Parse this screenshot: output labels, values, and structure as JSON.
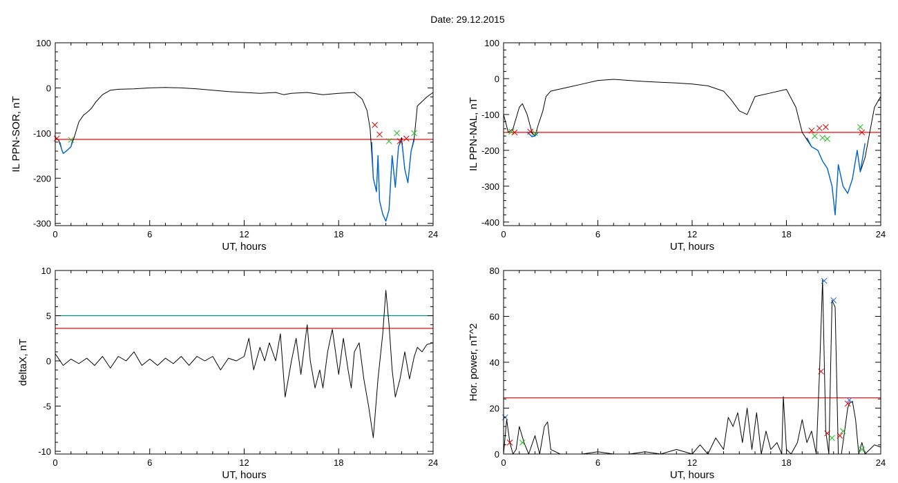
{
  "header": {
    "date_text": "Date:  29.12.2015"
  },
  "colors": {
    "trace": "#000000",
    "threshold": "#ff0000",
    "secondary_threshold": "#008b8b",
    "highlight": "#0066cc",
    "marker_red": "#dd0000",
    "marker_green": "#22bb22",
    "marker_blue": "#2266dd"
  },
  "chart_data": [
    {
      "type": "line",
      "xlabel": "UT, hours",
      "ylabel": "IL PPN-SOR, nT",
      "xlim": [
        0,
        24
      ],
      "ylim": [
        -305,
        100
      ],
      "xticks": [
        0,
        6,
        12,
        18,
        24
      ],
      "yticks": [
        100,
        0,
        -100,
        -200,
        -300
      ],
      "grid": false,
      "series": [
        {
          "role": "trace",
          "color": "#000000",
          "x": [
            0,
            0.2,
            0.4,
            0.5,
            0.7,
            1.0,
            1.2,
            1.5,
            1.8,
            2.0,
            2.3,
            2.6,
            3.0,
            3.5,
            4.0,
            5.0,
            6.0,
            7.0,
            8.0,
            9.0,
            10.0,
            11.0,
            12.0,
            13.0,
            14.0,
            14.5,
            15.0,
            16.0,
            17.0,
            18.0,
            19.0,
            19.5,
            19.8,
            20.0,
            20.2,
            20.4,
            20.5,
            20.6,
            20.8,
            21.0,
            21.2,
            21.4,
            21.6,
            21.8,
            22.0,
            22.2,
            22.4,
            22.6,
            22.8,
            23.0,
            23.3,
            23.6,
            24.0
          ],
          "y": [
            -110,
            -115,
            -135,
            -145,
            -140,
            -130,
            -110,
            -75,
            -60,
            -55,
            -45,
            -30,
            -15,
            -5,
            -3,
            -2,
            0,
            1,
            0,
            -2,
            -5,
            -8,
            -10,
            -12,
            -10,
            -15,
            -12,
            -10,
            -15,
            -12,
            -10,
            -25,
            -50,
            -90,
            -200,
            -230,
            -150,
            -250,
            -280,
            -295,
            -270,
            -150,
            -220,
            -130,
            -110,
            -180,
            -210,
            -140,
            -110,
            -40,
            -30,
            -20,
            -10
          ]
        },
        {
          "role": "highlight",
          "color": "#0066cc",
          "x": [
            0.3,
            0.4,
            0.5,
            0.7,
            1.0,
            1.1
          ],
          "y": [
            -120,
            -135,
            -145,
            -140,
            -130,
            -115
          ]
        },
        {
          "role": "highlight",
          "color": "#0066cc",
          "x": [
            20.1,
            20.2,
            20.4,
            20.5,
            20.6,
            20.8,
            21.0,
            21.2,
            21.4,
            21.6,
            21.8,
            22.0,
            22.2,
            22.4,
            22.6,
            22.8
          ],
          "y": [
            -120,
            -200,
            -230,
            -150,
            -250,
            -280,
            -295,
            -270,
            -150,
            -220,
            -130,
            -115,
            -180,
            -210,
            -140,
            -115
          ]
        }
      ],
      "threshold_lines": [
        {
          "value": -114,
          "color": "#ff0000"
        }
      ],
      "markers": [
        {
          "x": 0.1,
          "y": -112,
          "color": "#dd0000"
        },
        {
          "x": 1.0,
          "y": -115,
          "color": "#22bb22"
        },
        {
          "x": 20.3,
          "y": -82,
          "color": "#dd0000"
        },
        {
          "x": 20.6,
          "y": -103,
          "color": "#dd0000"
        },
        {
          "x": 21.2,
          "y": -118,
          "color": "#22bb22"
        },
        {
          "x": 21.7,
          "y": -100,
          "color": "#22bb22"
        },
        {
          "x": 21.9,
          "y": -118,
          "color": "#dd0000"
        },
        {
          "x": 22.3,
          "y": -112,
          "color": "#dd0000"
        },
        {
          "x": 22.8,
          "y": -100,
          "color": "#22bb22"
        }
      ]
    },
    {
      "type": "line",
      "xlabel": "UT, hours",
      "ylabel": "IL PPN-NAL, nT",
      "xlim": [
        0,
        24
      ],
      "ylim": [
        -410,
        100
      ],
      "xticks": [
        0,
        6,
        12,
        18,
        24
      ],
      "yticks": [
        100,
        0,
        -100,
        -200,
        -300,
        -400
      ],
      "grid": false,
      "series": [
        {
          "role": "trace",
          "color": "#000000",
          "x": [
            0,
            0.3,
            0.6,
            0.8,
            1.0,
            1.2,
            1.5,
            1.8,
            2.0,
            2.2,
            2.5,
            2.7,
            3.0,
            3.5,
            4.0,
            5.0,
            6.0,
            7.0,
            8.0,
            9.0,
            10.0,
            11.0,
            12.0,
            13.0,
            14.0,
            14.5,
            15.0,
            15.5,
            16.0,
            17.0,
            18.0,
            18.6,
            19.0,
            19.3,
            19.6,
            20.0,
            20.3,
            20.6,
            20.9,
            21.1,
            21.3,
            21.6,
            21.9,
            22.2,
            22.5,
            22.7,
            23.0,
            23.3,
            23.6,
            24.0
          ],
          "y": [
            -100,
            -150,
            -140,
            -110,
            -80,
            -70,
            -100,
            -150,
            -160,
            -130,
            -90,
            -50,
            -35,
            -30,
            -25,
            -15,
            -5,
            -2,
            -5,
            -8,
            -10,
            -12,
            -15,
            -20,
            -35,
            -60,
            -90,
            -100,
            -50,
            -40,
            -30,
            -80,
            -150,
            -170,
            -190,
            -200,
            -230,
            -250,
            -300,
            -380,
            -240,
            -300,
            -320,
            -280,
            -200,
            -260,
            -220,
            -150,
            -80,
            -50
          ]
        },
        {
          "role": "highlight",
          "color": "#0066cc",
          "x": [
            1.5,
            1.8,
            2.0,
            2.2
          ],
          "y": [
            -148,
            -162,
            -160,
            -150
          ]
        },
        {
          "role": "highlight",
          "color": "#0066cc",
          "x": [
            19.3,
            19.6,
            20.0,
            20.3,
            20.6,
            20.9,
            21.1,
            21.3,
            21.6,
            21.9,
            22.2,
            22.5,
            22.7,
            23.0
          ],
          "y": [
            -165,
            -190,
            -200,
            -230,
            -250,
            -300,
            -380,
            -240,
            -300,
            -320,
            -280,
            -200,
            -260,
            -180
          ]
        }
      ],
      "threshold_lines": [
        {
          "value": -150,
          "color": "#ff0000"
        }
      ],
      "markers": [
        {
          "x": 0.5,
          "y": -148,
          "color": "#22bb22"
        },
        {
          "x": 0.7,
          "y": -150,
          "color": "#dd0000"
        },
        {
          "x": 1.7,
          "y": -148,
          "color": "#dd0000"
        },
        {
          "x": 2.0,
          "y": -152,
          "color": "#22bb22"
        },
        {
          "x": 19.6,
          "y": -145,
          "color": "#dd0000"
        },
        {
          "x": 19.8,
          "y": -160,
          "color": "#22bb22"
        },
        {
          "x": 20.1,
          "y": -138,
          "color": "#dd0000"
        },
        {
          "x": 20.3,
          "y": -165,
          "color": "#22bb22"
        },
        {
          "x": 20.5,
          "y": -135,
          "color": "#dd0000"
        },
        {
          "x": 20.6,
          "y": -168,
          "color": "#22bb22"
        },
        {
          "x": 22.7,
          "y": -135,
          "color": "#22bb22"
        },
        {
          "x": 22.8,
          "y": -150,
          "color": "#dd0000"
        }
      ]
    },
    {
      "type": "line",
      "xlabel": "UT, hours",
      "ylabel": "deltaX, nT",
      "xlim": [
        0,
        24
      ],
      "ylim": [
        -10.3,
        10
      ],
      "xticks": [
        0,
        6,
        12,
        18,
        24
      ],
      "yticks": [
        10,
        5,
        0,
        -5,
        -10
      ],
      "grid": false,
      "series": [
        {
          "role": "trace",
          "color": "#000000",
          "x": [
            0,
            0.5,
            1.0,
            1.5,
            2.0,
            2.5,
            3.0,
            3.5,
            4.0,
            4.5,
            5.0,
            5.5,
            6.0,
            6.5,
            7.0,
            7.5,
            8.0,
            8.5,
            9.0,
            9.5,
            10.0,
            10.5,
            11.0,
            11.5,
            12.0,
            12.3,
            12.6,
            13.0,
            13.3,
            13.6,
            14.0,
            14.3,
            14.6,
            15.0,
            15.3,
            15.6,
            16.0,
            16.2,
            16.5,
            16.8,
            17.0,
            17.3,
            17.6,
            17.8,
            18.0,
            18.3,
            18.6,
            18.8,
            19.0,
            19.3,
            19.6,
            19.9,
            20.2,
            20.5,
            20.8,
            21.0,
            21.2,
            21.4,
            21.6,
            21.9,
            22.2,
            22.5,
            22.8,
            23.0,
            23.3,
            23.6,
            24.0
          ],
          "y": [
            0.8,
            -0.5,
            0.2,
            -0.3,
            0.3,
            -0.5,
            0.5,
            -0.8,
            0.5,
            0.0,
            1.0,
            -0.5,
            0.2,
            -0.5,
            0.3,
            -0.3,
            0.5,
            -0.5,
            0.5,
            0.0,
            0.5,
            -1.0,
            0.3,
            0.0,
            0.5,
            2.5,
            -1.0,
            1.5,
            0.0,
            2.0,
            0.0,
            3.0,
            -4.0,
            0.0,
            2.5,
            -1.5,
            4.0,
            0.0,
            -3.0,
            -1.0,
            -3.0,
            1.0,
            3.5,
            1.0,
            -1.5,
            2.5,
            -1.0,
            -3.0,
            1.0,
            2.0,
            -2.0,
            -5.0,
            -8.5,
            -2.0,
            3.0,
            7.8,
            4.0,
            -1.0,
            -4.0,
            -2.0,
            1.0,
            -2.0,
            0.5,
            1.5,
            1.0,
            1.8,
            2.0
          ]
        }
      ],
      "threshold_lines": [
        {
          "value": 5,
          "color": "#008b8b"
        },
        {
          "value": 3.6,
          "color": "#ff0000"
        }
      ],
      "markers": []
    },
    {
      "type": "line",
      "xlabel": "UT, hours",
      "ylabel": "Hor. power, nT^2",
      "xlim": [
        0,
        24
      ],
      "ylim": [
        0,
        80
      ],
      "xticks": [
        0,
        6,
        12,
        18,
        24
      ],
      "yticks": [
        80,
        60,
        40,
        20,
        0
      ],
      "grid": false,
      "series": [
        {
          "role": "trace",
          "color": "#000000",
          "x": [
            0,
            0.2,
            0.4,
            0.6,
            0.8,
            1.0,
            1.3,
            1.6,
            2.0,
            2.3,
            2.6,
            2.8,
            3.0,
            3.3,
            3.6,
            4.0,
            5.0,
            6.0,
            7.0,
            8.0,
            9.0,
            10.0,
            11.0,
            12.0,
            12.5,
            13.0,
            13.5,
            14.0,
            14.3,
            14.6,
            14.9,
            15.2,
            15.5,
            15.8,
            16.1,
            16.4,
            16.7,
            17.0,
            17.4,
            17.7,
            17.8,
            18.0,
            18.3,
            18.7,
            19.0,
            19.3,
            19.6,
            19.9,
            20.1,
            20.3,
            20.5,
            20.7,
            20.9,
            21.1,
            21.3,
            21.5,
            21.7,
            21.9,
            22.0,
            22.2,
            22.4,
            22.6,
            22.8,
            23.0,
            23.3,
            23.6,
            24.0
          ],
          "y": [
            0,
            15,
            5,
            0,
            2,
            12,
            5,
            0,
            8,
            0,
            12,
            14,
            2,
            1,
            0,
            0,
            0,
            1,
            0,
            0,
            1,
            0,
            2,
            0,
            4,
            0,
            7,
            2,
            16,
            12,
            18,
            5,
            20,
            2,
            18,
            0,
            10,
            2,
            5,
            0,
            25,
            2,
            0,
            5,
            15,
            5,
            10,
            0,
            35,
            76,
            10,
            0,
            67,
            64,
            0,
            0,
            10,
            20,
            22,
            23,
            15,
            0,
            5,
            0,
            2,
            4,
            3
          ]
        }
      ],
      "threshold_lines": [
        {
          "value": 24.5,
          "color": "#ff0000"
        }
      ],
      "markers": [
        {
          "x": 0.1,
          "y": 16,
          "color": "#2266dd"
        },
        {
          "x": 0.4,
          "y": 5,
          "color": "#dd0000"
        },
        {
          "x": 1.2,
          "y": 5,
          "color": "#22bb22"
        },
        {
          "x": 20.2,
          "y": 36,
          "color": "#dd0000"
        },
        {
          "x": 20.4,
          "y": 75.5,
          "color": "#2266dd"
        },
        {
          "x": 20.6,
          "y": 9,
          "color": "#dd0000"
        },
        {
          "x": 20.9,
          "y": 7,
          "color": "#22bb22"
        },
        {
          "x": 21.0,
          "y": 67,
          "color": "#2266dd"
        },
        {
          "x": 21.4,
          "y": 8,
          "color": "#dd0000"
        },
        {
          "x": 21.6,
          "y": 10,
          "color": "#22bb22"
        },
        {
          "x": 21.9,
          "y": 22,
          "color": "#dd0000"
        },
        {
          "x": 22.0,
          "y": 23.5,
          "color": "#2266dd"
        },
        {
          "x": 22.8,
          "y": 2,
          "color": "#22bb22"
        }
      ]
    }
  ]
}
